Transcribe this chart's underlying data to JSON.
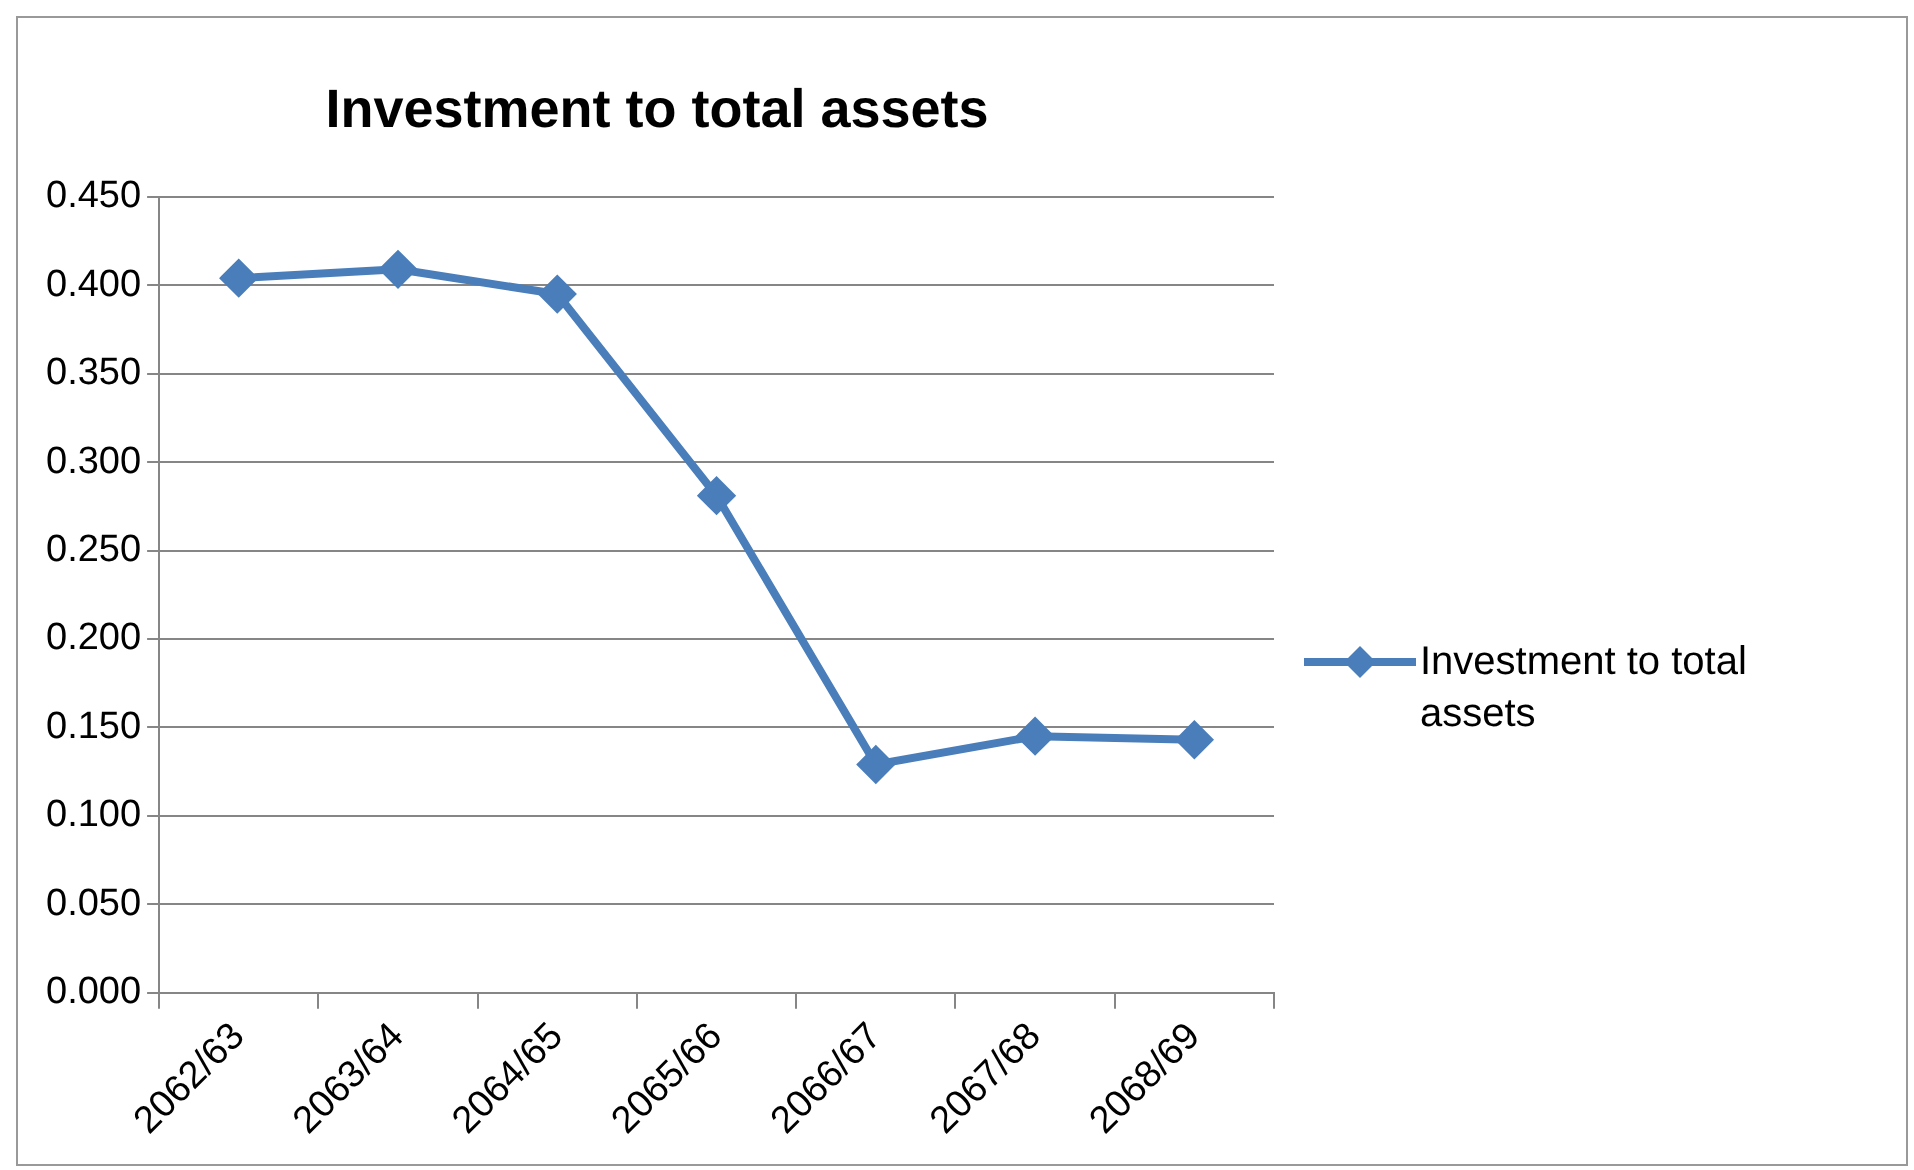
{
  "chart_data": {
    "type": "line",
    "title": "Investment to total assets",
    "categories": [
      "2062/63",
      "2063/64",
      "2064/65",
      "2065/66",
      "2066/67",
      "2067/68",
      "2068/69"
    ],
    "series": [
      {
        "name": "Investment to total assets",
        "color": "#4a7ebb",
        "values": [
          0.404,
          0.409,
          0.395,
          0.281,
          0.129,
          0.145,
          0.143
        ]
      }
    ],
    "ylim": [
      0,
      0.45
    ],
    "yticks": [
      {
        "value": 0,
        "label": "0.000"
      },
      {
        "value": 0.05,
        "label": "0.050"
      },
      {
        "value": 0.1,
        "label": "0.100"
      },
      {
        "value": 0.15,
        "label": "0.150"
      },
      {
        "value": 0.2,
        "label": "0.200"
      },
      {
        "value": 0.25,
        "label": "0.250"
      },
      {
        "value": 0.3,
        "label": "0.300"
      },
      {
        "value": 0.35,
        "label": "0.350"
      },
      {
        "value": 0.4,
        "label": "0.400"
      },
      {
        "value": 0.45,
        "label": "0.450"
      }
    ],
    "grid": "y",
    "legend": "right",
    "marker": "diamond",
    "line_style": "solid"
  }
}
